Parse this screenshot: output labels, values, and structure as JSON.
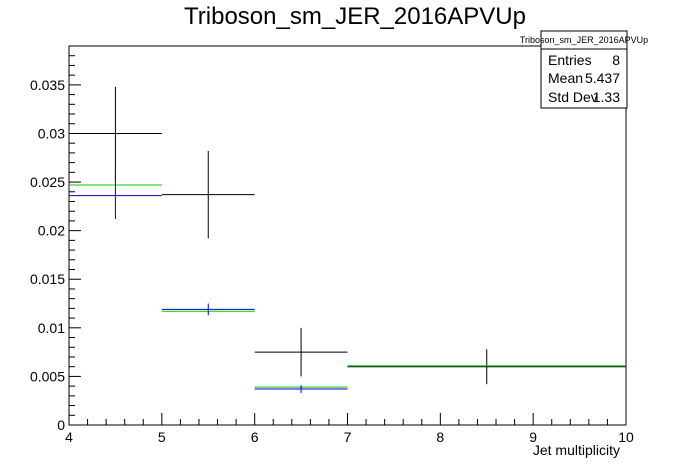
{
  "chart_data": {
    "type": "histogram",
    "title": "Triboson_sm_JER_2016APVUp",
    "xlabel": "Jet multiplicity",
    "ylabel": "",
    "xlim": [
      4,
      10
    ],
    "ylim": [
      0,
      0.039
    ],
    "x_ticks": [
      "4",
      "5",
      "6",
      "7",
      "8",
      "9",
      "10"
    ],
    "y_ticks": [
      "0",
      "0.005",
      "0.01",
      "0.015",
      "0.02",
      "0.025",
      "0.03",
      "0.035"
    ],
    "grid": false,
    "stats_box": {
      "title": "Triboson_sm_JER_2016APVUp",
      "position": "top-right",
      "rows": [
        {
          "label": "Entries",
          "value": "8"
        },
        {
          "label": "Mean",
          "value": "5.437"
        },
        {
          "label": "Std Dev",
          "value": "1.33"
        }
      ]
    },
    "series": [
      {
        "color": "#000000",
        "bins": [
          {
            "x0": 4,
            "x1": 5,
            "y": 0.03,
            "err": 0.0048
          },
          {
            "x0": 5,
            "x1": 6,
            "y": 0.0237,
            "err": 0.0045
          },
          {
            "x0": 6,
            "x1": 7,
            "y": 0.0075,
            "err": 0.0025
          },
          {
            "x0": 7,
            "x1": 10,
            "y": 0.006,
            "err": 0.0018
          }
        ]
      },
      {
        "color": "#00cc00",
        "bins": [
          {
            "x0": 4,
            "x1": 5,
            "y": 0.0247,
            "err": 0
          },
          {
            "x0": 5,
            "x1": 6,
            "y": 0.0117,
            "err": 0
          },
          {
            "x0": 6,
            "x1": 7,
            "y": 0.0039,
            "err": 0
          },
          {
            "x0": 7,
            "x1": 10,
            "y": 0.0061,
            "err": 0
          }
        ]
      },
      {
        "color": "#0000cc",
        "bins": [
          {
            "x0": 4,
            "x1": 5,
            "y": 0.0236,
            "err": 0.0024
          },
          {
            "x0": 5,
            "x1": 6,
            "y": 0.0119,
            "err": 0.0006
          },
          {
            "x0": 6,
            "x1": 7,
            "y": 0.0037,
            "err": 0.0004
          }
        ]
      }
    ]
  }
}
